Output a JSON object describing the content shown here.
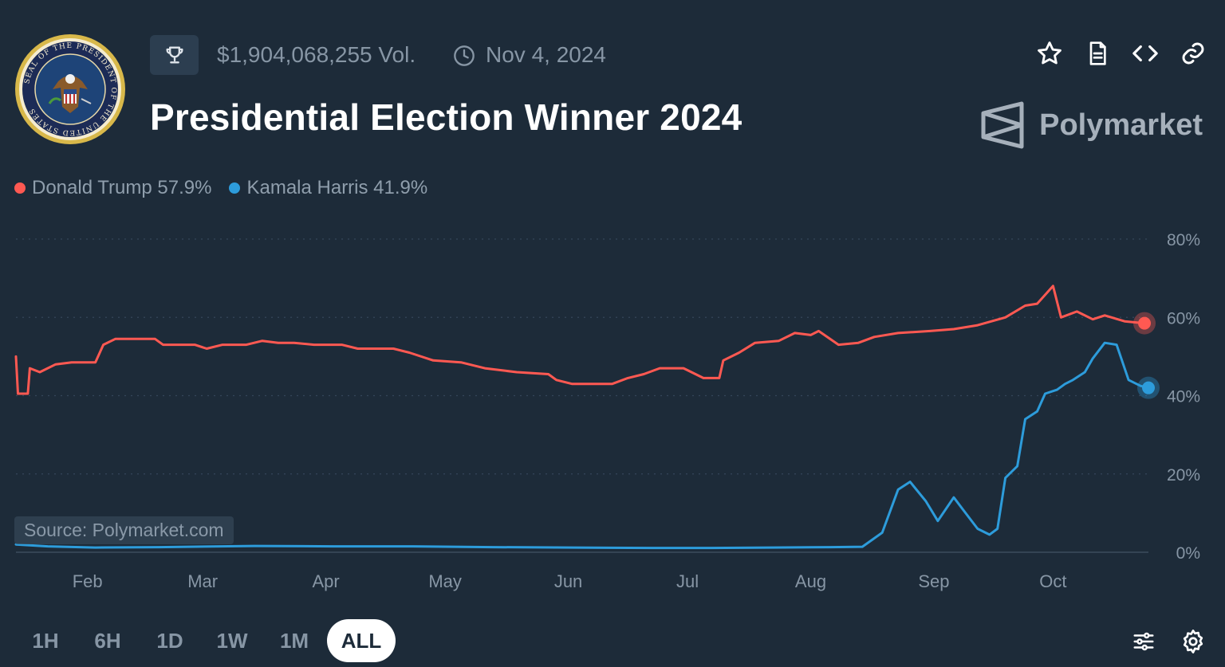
{
  "header": {
    "volume": "$1,904,068,255 Vol.",
    "date": "Nov 4, 2024",
    "title": "Presidential Election Winner 2024",
    "brand": "Polymarket",
    "seal_text": "SEAL OF THE PRESIDENT OF THE UNITED STATES",
    "icons": [
      "trophy-icon",
      "clock-icon",
      "star-icon",
      "document-icon",
      "embed-code-icon",
      "link-icon"
    ]
  },
  "legend": [
    {
      "label": "Donald Trump 57.9%",
      "color": "#ff5952"
    },
    {
      "label": "Kamala Harris 41.9%",
      "color": "#2d9cdb"
    }
  ],
  "source": "Source: Polymarket.com",
  "ranges": [
    {
      "label": "1H",
      "active": false
    },
    {
      "label": "6H",
      "active": false
    },
    {
      "label": "1D",
      "active": false
    },
    {
      "label": "1W",
      "active": false
    },
    {
      "label": "1M",
      "active": false
    },
    {
      "label": "ALL",
      "active": true
    }
  ],
  "bottom_icons": [
    "sliders-icon",
    "settings-gear-icon"
  ],
  "chart_data": {
    "type": "line",
    "title": "Presidential Election Winner 2024",
    "xlabel": "",
    "ylabel": "",
    "x_ticks": [
      "Feb",
      "Mar",
      "Apr",
      "May",
      "Jun",
      "Jul",
      "Aug",
      "Sep",
      "Oct"
    ],
    "y_ticks": [
      "0%",
      "20%",
      "40%",
      "60%",
      "80%"
    ],
    "ylim": [
      0,
      80
    ],
    "xlim": [
      0,
      285
    ],
    "grid": true,
    "series": [
      {
        "name": "Donald Trump",
        "color": "#ff5952",
        "points": [
          [
            0,
            50
          ],
          [
            0.5,
            40.5
          ],
          [
            3,
            40.5
          ],
          [
            3.5,
            47
          ],
          [
            6,
            46
          ],
          [
            10,
            48
          ],
          [
            14,
            48.5
          ],
          [
            18,
            48.5
          ],
          [
            20,
            48.5
          ],
          [
            22,
            53
          ],
          [
            25,
            54.5
          ],
          [
            35,
            54.5
          ],
          [
            37,
            53
          ],
          [
            45,
            53
          ],
          [
            48,
            52
          ],
          [
            52,
            53
          ],
          [
            58,
            53
          ],
          [
            62,
            54
          ],
          [
            66,
            53.5
          ],
          [
            70,
            53.5
          ],
          [
            75,
            53
          ],
          [
            82,
            53
          ],
          [
            86,
            52
          ],
          [
            95,
            52
          ],
          [
            99,
            51
          ],
          [
            105,
            49
          ],
          [
            112,
            48.5
          ],
          [
            118,
            47
          ],
          [
            126,
            46
          ],
          [
            134,
            45.5
          ],
          [
            136,
            44
          ],
          [
            140,
            43
          ],
          [
            146,
            43
          ],
          [
            150,
            43
          ],
          [
            154,
            44.5
          ],
          [
            158,
            45.5
          ],
          [
            162,
            47
          ],
          [
            168,
            47
          ],
          [
            173,
            44.5
          ],
          [
            177,
            44.5
          ],
          [
            178,
            49
          ],
          [
            182,
            51
          ],
          [
            186,
            53.5
          ],
          [
            192,
            54
          ],
          [
            196,
            56
          ],
          [
            200,
            55.5
          ],
          [
            202,
            56.5
          ],
          [
            207,
            53
          ],
          [
            212,
            53.5
          ],
          [
            216,
            55
          ],
          [
            222,
            56
          ],
          [
            230,
            56.5
          ],
          [
            236,
            57
          ],
          [
            242,
            58
          ],
          [
            249,
            60
          ],
          [
            254,
            63
          ],
          [
            257,
            63.5
          ],
          [
            261,
            68
          ],
          [
            263,
            60
          ],
          [
            267,
            61.5
          ],
          [
            271,
            59.5
          ],
          [
            274,
            60.5
          ],
          [
            279,
            59
          ],
          [
            284,
            58.5
          ]
        ]
      },
      {
        "name": "Kamala Harris",
        "color": "#2d9cdb",
        "points": [
          [
            0,
            2
          ],
          [
            8,
            1.5
          ],
          [
            20,
            1.2
          ],
          [
            36,
            1.3
          ],
          [
            60,
            1.6
          ],
          [
            80,
            1.5
          ],
          [
            100,
            1.5
          ],
          [
            120,
            1.3
          ],
          [
            140,
            1.2
          ],
          [
            160,
            1.1
          ],
          [
            175,
            1.1
          ],
          [
            190,
            1.2
          ],
          [
            205,
            1.3
          ],
          [
            213,
            1.4
          ],
          [
            218,
            5
          ],
          [
            222,
            16
          ],
          [
            225,
            18
          ],
          [
            229,
            13
          ],
          [
            232,
            8
          ],
          [
            236,
            14
          ],
          [
            239,
            10
          ],
          [
            242,
            6
          ],
          [
            245,
            4.5
          ],
          [
            247,
            6
          ],
          [
            249,
            19
          ],
          [
            252,
            22
          ],
          [
            254,
            34
          ],
          [
            257,
            36
          ],
          [
            259,
            40.5
          ],
          [
            262,
            41.5
          ],
          [
            264,
            43
          ],
          [
            266,
            44
          ],
          [
            269,
            46
          ],
          [
            271,
            49.5
          ],
          [
            274,
            53.5
          ],
          [
            277,
            53
          ],
          [
            280,
            44
          ],
          [
            283,
            42.5
          ],
          [
            285,
            42
          ]
        ]
      }
    ]
  }
}
